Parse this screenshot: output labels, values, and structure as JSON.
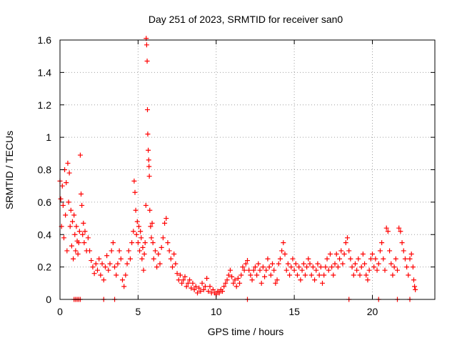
{
  "chart_data": {
    "type": "scatter",
    "title": "Day 251 of 2023, SRMTID for receiver san0",
    "xlabel": "GPS time / hours",
    "ylabel": "SRMTID / TECUs",
    "xlim": [
      0,
      24
    ],
    "ylim": [
      0,
      1.6
    ],
    "grid": true,
    "marker": "+",
    "marker_color": "#ff0000",
    "xticks": [
      0,
      5,
      10,
      15,
      20
    ],
    "xtick_labels": [
      "0",
      "5",
      "10",
      "15",
      "20"
    ],
    "yticks": [
      0,
      0.2,
      0.4,
      0.6,
      0.8,
      1,
      1.2,
      1.4,
      1.6
    ],
    "ytick_labels": [
      "0",
      "0.2",
      "0.4",
      "0.6",
      "0.8",
      "1",
      "1.2",
      "1.4",
      "1.6"
    ],
    "series": [
      {
        "name": "SRMTID",
        "points": [
          [
            0.0,
            0.73
          ],
          [
            0.05,
            0.62
          ],
          [
            0.1,
            0.45
          ],
          [
            0.15,
            0.7
          ],
          [
            0.2,
            0.58
          ],
          [
            0.25,
            0.38
          ],
          [
            0.3,
            0.8
          ],
          [
            0.35,
            0.52
          ],
          [
            0.4,
            0.72
          ],
          [
            0.45,
            0.3
          ],
          [
            0.5,
            0.84
          ],
          [
            0.55,
            0.6
          ],
          [
            0.6,
            0.78
          ],
          [
            0.65,
            0.45
          ],
          [
            0.7,
            0.55
          ],
          [
            0.75,
            0.33
          ],
          [
            0.8,
            0.48
          ],
          [
            0.85,
            0.25
          ],
          [
            0.9,
            0.52
          ],
          [
            0.95,
            0.4
          ],
          [
            1.0,
            0.3
          ],
          [
            1.05,
            0.45
          ],
          [
            1.1,
            0.36
          ],
          [
            1.15,
            0.28
          ],
          [
            1.2,
            0.35
          ],
          [
            1.25,
            0.42
          ],
          [
            1.3,
            0.89
          ],
          [
            1.35,
            0.65
          ],
          [
            1.4,
            0.58
          ],
          [
            1.45,
            0.4
          ],
          [
            1.5,
            0.47
          ],
          [
            1.55,
            0.35
          ],
          [
            1.6,
            0.42
          ],
          [
            1.7,
            0.3
          ],
          [
            1.8,
            0.38
          ],
          [
            1.9,
            0.3
          ],
          [
            2.0,
            0.24
          ],
          [
            2.1,
            0.2
          ],
          [
            2.2,
            0.16
          ],
          [
            2.3,
            0.22
          ],
          [
            2.4,
            0.18
          ],
          [
            2.5,
            0.25
          ],
          [
            2.6,
            0.15
          ],
          [
            2.7,
            0.22
          ],
          [
            2.8,
            0.12
          ],
          [
            2.9,
            0.2
          ],
          [
            3.0,
            0.27
          ],
          [
            3.1,
            0.18
          ],
          [
            3.2,
            0.22
          ],
          [
            3.3,
            0.3
          ],
          [
            3.4,
            0.35
          ],
          [
            3.5,
            0.2
          ],
          [
            3.6,
            0.15
          ],
          [
            3.7,
            0.22
          ],
          [
            3.8,
            0.3
          ],
          [
            3.9,
            0.25
          ],
          [
            4.0,
            0.12
          ],
          [
            4.1,
            0.08
          ],
          [
            4.2,
            0.15
          ],
          [
            4.3,
            0.22
          ],
          [
            4.4,
            0.3
          ],
          [
            4.5,
            0.25
          ],
          [
            4.6,
            0.35
          ],
          [
            4.7,
            0.42
          ],
          [
            4.75,
            0.73
          ],
          [
            4.8,
            0.66
          ],
          [
            4.85,
            0.55
          ],
          [
            4.9,
            0.4
          ],
          [
            4.95,
            0.48
          ],
          [
            5.0,
            0.35
          ],
          [
            5.05,
            0.45
          ],
          [
            5.1,
            0.3
          ],
          [
            5.15,
            0.42
          ],
          [
            5.2,
            0.38
          ],
          [
            5.25,
            0.25
          ],
          [
            5.3,
            0.32
          ],
          [
            5.35,
            0.18
          ],
          [
            5.4,
            0.28
          ],
          [
            5.45,
            0.35
          ],
          [
            5.5,
            0.58
          ],
          [
            5.52,
            1.61
          ],
          [
            5.55,
            1.57
          ],
          [
            5.58,
            1.47
          ],
          [
            5.6,
            1.17
          ],
          [
            5.62,
            1.02
          ],
          [
            5.65,
            0.92
          ],
          [
            5.68,
            0.86
          ],
          [
            5.7,
            0.82
          ],
          [
            5.72,
            0.76
          ],
          [
            5.75,
            0.55
          ],
          [
            5.8,
            0.45
          ],
          [
            5.85,
            0.38
          ],
          [
            5.9,
            0.47
          ],
          [
            5.95,
            0.35
          ],
          [
            6.0,
            0.25
          ],
          [
            6.1,
            0.3
          ],
          [
            6.2,
            0.2
          ],
          [
            6.3,
            0.28
          ],
          [
            6.4,
            0.22
          ],
          [
            6.5,
            0.32
          ],
          [
            6.6,
            0.38
          ],
          [
            6.7,
            0.47
          ],
          [
            6.8,
            0.5
          ],
          [
            6.9,
            0.35
          ],
          [
            7.0,
            0.3
          ],
          [
            7.1,
            0.25
          ],
          [
            7.2,
            0.2
          ],
          [
            7.3,
            0.28
          ],
          [
            7.4,
            0.22
          ],
          [
            7.5,
            0.16
          ],
          [
            7.6,
            0.12
          ],
          [
            7.7,
            0.15
          ],
          [
            7.8,
            0.1
          ],
          [
            7.9,
            0.12
          ],
          [
            8.0,
            0.14
          ],
          [
            8.1,
            0.08
          ],
          [
            8.2,
            0.1
          ],
          [
            8.3,
            0.12
          ],
          [
            8.4,
            0.07
          ],
          [
            8.5,
            0.1
          ],
          [
            8.6,
            0.06
          ],
          [
            8.7,
            0.08
          ],
          [
            8.8,
            0.04
          ],
          [
            8.9,
            0.07
          ],
          [
            9.0,
            0.05
          ],
          [
            9.1,
            0.1
          ],
          [
            9.2,
            0.06
          ],
          [
            9.3,
            0.08
          ],
          [
            9.4,
            0.13
          ],
          [
            9.5,
            0.05
          ],
          [
            9.6,
            0.08
          ],
          [
            9.7,
            0.04
          ],
          [
            9.8,
            0.06
          ],
          [
            9.9,
            0.04
          ],
          [
            10.0,
            0.03
          ],
          [
            10.1,
            0.05
          ],
          [
            10.2,
            0.04
          ],
          [
            10.3,
            0.06
          ],
          [
            10.4,
            0.05
          ],
          [
            10.5,
            0.08
          ],
          [
            10.6,
            0.1
          ],
          [
            10.7,
            0.12
          ],
          [
            10.8,
            0.15
          ],
          [
            10.9,
            0.18
          ],
          [
            11.0,
            0.14
          ],
          [
            11.1,
            0.1
          ],
          [
            11.2,
            0.12
          ],
          [
            11.3,
            0.08
          ],
          [
            11.4,
            0.13
          ],
          [
            11.5,
            0.1
          ],
          [
            11.6,
            0.15
          ],
          [
            11.7,
            0.2
          ],
          [
            11.8,
            0.18
          ],
          [
            11.9,
            0.22
          ],
          [
            12.0,
            0.24
          ],
          [
            12.1,
            0.18
          ],
          [
            12.2,
            0.15
          ],
          [
            12.3,
            0.12
          ],
          [
            12.4,
            0.18
          ],
          [
            12.5,
            0.2
          ],
          [
            12.6,
            0.15
          ],
          [
            12.7,
            0.22
          ],
          [
            12.8,
            0.18
          ],
          [
            12.9,
            0.1
          ],
          [
            13.0,
            0.2
          ],
          [
            13.1,
            0.14
          ],
          [
            13.2,
            0.18
          ],
          [
            13.3,
            0.25
          ],
          [
            13.4,
            0.2
          ],
          [
            13.5,
            0.15
          ],
          [
            13.6,
            0.22
          ],
          [
            13.7,
            0.18
          ],
          [
            13.8,
            0.1
          ],
          [
            13.9,
            0.12
          ],
          [
            14.0,
            0.22
          ],
          [
            14.1,
            0.25
          ],
          [
            14.2,
            0.3
          ],
          [
            14.3,
            0.35
          ],
          [
            14.4,
            0.28
          ],
          [
            14.5,
            0.18
          ],
          [
            14.6,
            0.22
          ],
          [
            14.7,
            0.15
          ],
          [
            14.8,
            0.2
          ],
          [
            14.9,
            0.25
          ],
          [
            15.0,
            0.18
          ],
          [
            15.1,
            0.22
          ],
          [
            15.2,
            0.15
          ],
          [
            15.3,
            0.2
          ],
          [
            15.4,
            0.12
          ],
          [
            15.5,
            0.18
          ],
          [
            15.6,
            0.22
          ],
          [
            15.7,
            0.15
          ],
          [
            15.8,
            0.2
          ],
          [
            15.9,
            0.25
          ],
          [
            16.0,
            0.22
          ],
          [
            16.1,
            0.15
          ],
          [
            16.2,
            0.2
          ],
          [
            16.3,
            0.12
          ],
          [
            16.4,
            0.18
          ],
          [
            16.5,
            0.22
          ],
          [
            16.6,
            0.15
          ],
          [
            16.7,
            0.2
          ],
          [
            16.8,
            0.1
          ],
          [
            16.9,
            0.15
          ],
          [
            17.0,
            0.2
          ],
          [
            17.1,
            0.25
          ],
          [
            17.2,
            0.18
          ],
          [
            17.3,
            0.28
          ],
          [
            17.4,
            0.2
          ],
          [
            17.5,
            0.15
          ],
          [
            17.6,
            0.22
          ],
          [
            17.7,
            0.28
          ],
          [
            17.8,
            0.2
          ],
          [
            17.9,
            0.25
          ],
          [
            18.0,
            0.3
          ],
          [
            18.1,
            0.22
          ],
          [
            18.2,
            0.28
          ],
          [
            18.3,
            0.35
          ],
          [
            18.4,
            0.38
          ],
          [
            18.5,
            0.3
          ],
          [
            18.6,
            0.25
          ],
          [
            18.7,
            0.2
          ],
          [
            18.8,
            0.15
          ],
          [
            18.9,
            0.22
          ],
          [
            19.0,
            0.18
          ],
          [
            19.1,
            0.25
          ],
          [
            19.2,
            0.15
          ],
          [
            19.3,
            0.2
          ],
          [
            19.4,
            0.28
          ],
          [
            19.5,
            0.22
          ],
          [
            19.6,
            0.15
          ],
          [
            19.7,
            0.12
          ],
          [
            19.8,
            0.18
          ],
          [
            19.9,
            0.25
          ],
          [
            20.0,
            0.28
          ],
          [
            20.1,
            0.2
          ],
          [
            20.2,
            0.25
          ],
          [
            20.3,
            0.18
          ],
          [
            20.4,
            0.22
          ],
          [
            20.5,
            0.3
          ],
          [
            20.6,
            0.35
          ],
          [
            20.7,
            0.25
          ],
          [
            20.8,
            0.18
          ],
          [
            20.9,
            0.44
          ],
          [
            21.0,
            0.42
          ],
          [
            21.1,
            0.3
          ],
          [
            21.2,
            0.22
          ],
          [
            21.3,
            0.15
          ],
          [
            21.4,
            0.2
          ],
          [
            21.5,
            0.25
          ],
          [
            21.6,
            0.18
          ],
          [
            21.7,
            0.44
          ],
          [
            21.8,
            0.42
          ],
          [
            21.9,
            0.35
          ],
          [
            22.0,
            0.3
          ],
          [
            22.1,
            0.25
          ],
          [
            22.2,
            0.2
          ],
          [
            22.3,
            0.15
          ],
          [
            22.4,
            0.25
          ],
          [
            22.5,
            0.28
          ],
          [
            22.6,
            0.2
          ],
          [
            22.65,
            0.12
          ],
          [
            22.7,
            0.08
          ],
          [
            22.75,
            0.06
          ],
          [
            0.9,
            0.0
          ],
          [
            1.0,
            0.0
          ],
          [
            1.1,
            0.0
          ],
          [
            1.2,
            0.0
          ],
          [
            1.3,
            0.0
          ],
          [
            2.8,
            0.0
          ],
          [
            3.5,
            0.0
          ],
          [
            12.0,
            0.0
          ],
          [
            18.5,
            0.0
          ],
          [
            20.4,
            0.0
          ],
          [
            21.6,
            0.0
          ],
          [
            22.4,
            0.0
          ]
        ]
      }
    ]
  }
}
